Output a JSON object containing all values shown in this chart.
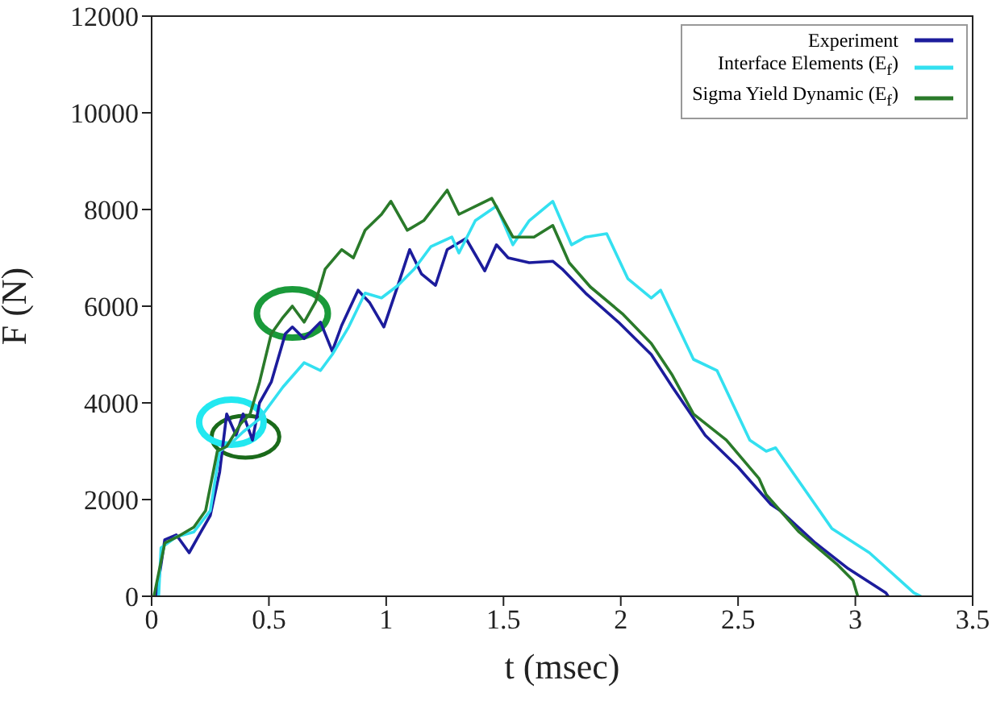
{
  "chart_data": {
    "type": "line",
    "xlabel": "t (msec)",
    "ylabel": "F (N)",
    "xlim": [
      0,
      3.5
    ],
    "xticks": [
      0,
      0.5,
      1,
      1.5,
      2,
      2.5,
      3,
      3.5
    ],
    "ylim": [
      0,
      12000
    ],
    "yticks": [
      0,
      2000,
      4000,
      6000,
      8000,
      10000,
      12000
    ],
    "legend": "top right",
    "grid": false,
    "marker": "none",
    "line_style": "solid",
    "series": [
      {
        "name": "Experiment",
        "color": "#1c1c9c",
        "x": [
          0.02,
          0.056,
          0.105,
          0.16,
          0.21,
          0.25,
          0.29,
          0.32,
          0.36,
          0.39,
          0.43,
          0.46,
          0.51,
          0.57,
          0.6,
          0.65,
          0.72,
          0.77,
          0.81,
          0.88,
          0.93,
          0.99,
          1.05,
          1.1,
          1.15,
          1.21,
          1.26,
          1.34,
          1.42,
          1.47,
          1.52,
          1.61,
          1.71,
          1.75,
          1.85,
          1.99,
          2.13,
          2.22,
          2.36,
          2.5,
          2.64,
          2.68,
          2.83,
          2.97,
          3.13,
          3.14
        ],
        "values": [
          0,
          1170,
          1270,
          900,
          1330,
          1670,
          2570,
          3770,
          3330,
          3770,
          3230,
          4000,
          4430,
          5430,
          5570,
          5330,
          5670,
          5070,
          5600,
          6330,
          6070,
          5570,
          6430,
          7170,
          6670,
          6430,
          7170,
          7400,
          6730,
          7270,
          7000,
          6900,
          6930,
          6770,
          6270,
          5670,
          5000,
          4330,
          3330,
          2670,
          1900,
          1770,
          1100,
          570,
          70,
          0
        ]
      },
      {
        "name": "Interface Elements (E$_{f}$)",
        "color": "#33e0f0",
        "x": [
          0.03,
          0.04,
          0.105,
          0.18,
          0.25,
          0.29,
          0.34,
          0.39,
          0.46,
          0.56,
          0.65,
          0.72,
          0.77,
          0.84,
          0.91,
          0.98,
          1.05,
          1.12,
          1.19,
          1.28,
          1.31,
          1.38,
          1.47,
          1.54,
          1.61,
          1.71,
          1.79,
          1.85,
          1.94,
          2.03,
          2.13,
          2.17,
          2.31,
          2.41,
          2.55,
          2.62,
          2.66,
          2.9,
          3.06,
          3.25,
          3.28
        ],
        "values": [
          0,
          1000,
          1230,
          1330,
          1770,
          3000,
          3170,
          3400,
          3670,
          4330,
          4830,
          4670,
          5000,
          5570,
          6270,
          6170,
          6430,
          6770,
          7230,
          7430,
          7100,
          7770,
          8070,
          7270,
          7770,
          8170,
          7270,
          7430,
          7500,
          6570,
          6170,
          6330,
          4900,
          4670,
          3230,
          3000,
          3070,
          1400,
          900,
          70,
          0
        ]
      },
      {
        "name": "Sigma Yield Dynamic (E$_{f}$)",
        "color": "#2a7a2a",
        "x": [
          0.01,
          0.056,
          0.11,
          0.18,
          0.23,
          0.28,
          0.32,
          0.38,
          0.42,
          0.46,
          0.51,
          0.56,
          0.6,
          0.65,
          0.7,
          0.74,
          0.81,
          0.86,
          0.91,
          0.98,
          1.02,
          1.09,
          1.16,
          1.26,
          1.31,
          1.45,
          1.54,
          1.63,
          1.71,
          1.78,
          1.87,
          2.01,
          2.13,
          2.22,
          2.31,
          2.45,
          2.59,
          2.62,
          2.76,
          2.92,
          2.99,
          3.01
        ],
        "values": [
          0,
          1100,
          1230,
          1430,
          1770,
          3000,
          3100,
          3570,
          3770,
          4430,
          5430,
          5770,
          6000,
          5670,
          6100,
          6770,
          7170,
          7000,
          7570,
          7900,
          8170,
          7570,
          7770,
          8400,
          7900,
          8230,
          7430,
          7430,
          7670,
          6900,
          6400,
          5830,
          5230,
          4570,
          3770,
          3230,
          2430,
          2100,
          1330,
          670,
          330,
          0
        ]
      }
    ]
  }
}
